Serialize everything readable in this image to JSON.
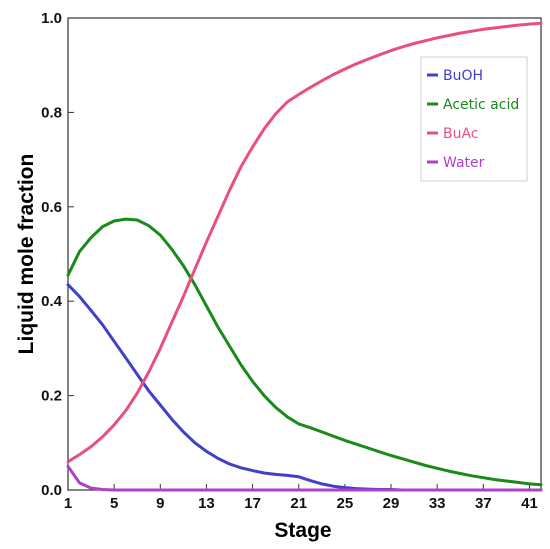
{
  "chart_data": {
    "type": "line",
    "title": "",
    "xlabel": "Stage",
    "ylabel": "Liquid mole fraction",
    "xlim": [
      1,
      42
    ],
    "ylim": [
      0,
      1.0
    ],
    "x_ticks": [
      "1",
      "5",
      "9",
      "13",
      "17",
      "21",
      "25",
      "29",
      "33",
      "37",
      "41"
    ],
    "y_ticks": [
      "0.0",
      "0.2",
      "0.4",
      "0.6",
      "0.8",
      "1.0"
    ],
    "grid": false,
    "legend_position": "top-right",
    "x": [
      1,
      2,
      3,
      4,
      5,
      6,
      7,
      8,
      9,
      10,
      11,
      12,
      13,
      14,
      15,
      16,
      17,
      18,
      19,
      20,
      21,
      22,
      23,
      24,
      25,
      26,
      27,
      28,
      29,
      30,
      31,
      32,
      33,
      34,
      35,
      36,
      37,
      38,
      39,
      40,
      41,
      42
    ],
    "series": [
      {
        "name": "BuOH",
        "color": "#4040c8",
        "values": [
          0.435,
          0.41,
          0.38,
          0.35,
          0.315,
          0.28,
          0.245,
          0.21,
          0.18,
          0.15,
          0.123,
          0.1,
          0.082,
          0.067,
          0.055,
          0.047,
          0.041,
          0.036,
          0.033,
          0.031,
          0.028,
          0.02,
          0.013,
          0.008,
          0.005,
          0.003,
          0.002,
          0.001,
          0.001,
          0,
          0,
          0,
          0,
          0,
          0,
          0,
          0,
          0,
          0,
          0,
          0,
          0
        ]
      },
      {
        "name": "Acetic acid",
        "color": "#1a8a1a",
        "values": [
          0.455,
          0.505,
          0.535,
          0.558,
          0.57,
          0.574,
          0.572,
          0.56,
          0.54,
          0.51,
          0.475,
          0.435,
          0.39,
          0.345,
          0.305,
          0.265,
          0.23,
          0.2,
          0.175,
          0.155,
          0.14,
          0.132,
          0.123,
          0.114,
          0.105,
          0.097,
          0.089,
          0.081,
          0.073,
          0.066,
          0.059,
          0.052,
          0.046,
          0.04,
          0.035,
          0.03,
          0.026,
          0.022,
          0.019,
          0.016,
          0.013,
          0.011
        ]
      },
      {
        "name": "BuAc",
        "color": "#e8507a",
        "values": [
          0.06,
          0.075,
          0.092,
          0.113,
          0.138,
          0.168,
          0.205,
          0.25,
          0.3,
          0.355,
          0.41,
          0.468,
          0.525,
          0.58,
          0.635,
          0.685,
          0.727,
          0.765,
          0.797,
          0.822,
          0.838,
          0.853,
          0.867,
          0.88,
          0.892,
          0.903,
          0.913,
          0.922,
          0.931,
          0.939,
          0.946,
          0.952,
          0.958,
          0.963,
          0.968,
          0.972,
          0.976,
          0.979,
          0.982,
          0.985,
          0.987,
          0.989
        ]
      },
      {
        "name": "Water",
        "color": "#b040c8",
        "values": [
          0.05,
          0.015,
          0.004,
          0.001,
          0,
          0,
          0,
          0,
          0,
          0,
          0,
          0,
          0,
          0,
          0,
          0,
          0,
          0,
          0,
          0,
          0,
          0,
          0,
          0,
          0,
          0,
          0,
          0,
          0,
          0,
          0,
          0,
          0,
          0,
          0,
          0,
          0,
          0,
          0,
          0,
          0,
          0
        ]
      }
    ]
  }
}
